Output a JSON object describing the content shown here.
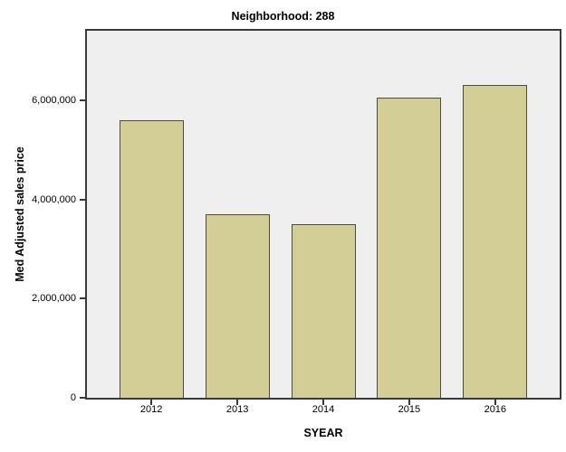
{
  "chart_data": {
    "type": "bar",
    "title": "Neighborhood: 288",
    "xlabel": "SYEAR",
    "ylabel": "Med Adjusted sales price",
    "categories": [
      "2012",
      "2013",
      "2014",
      "2015",
      "2016"
    ],
    "values": [
      5600000,
      3700000,
      3500000,
      6050000,
      6300000
    ],
    "ylim": [
      0,
      7400000
    ],
    "yticks": [
      0,
      2000000,
      4000000,
      6000000
    ],
    "ytick_labels": [
      "0",
      "2,000,000",
      "4,000,000",
      "6,000,000"
    ],
    "grid": false,
    "legend": "none",
    "colors": {
      "bar_fill": "#D2CE96",
      "bar_border": "#4D4B39",
      "plot_background": "#EFEFEF",
      "frame": "#3A3A3A",
      "text": "#000000",
      "page_background": "#FFFFFF"
    }
  }
}
